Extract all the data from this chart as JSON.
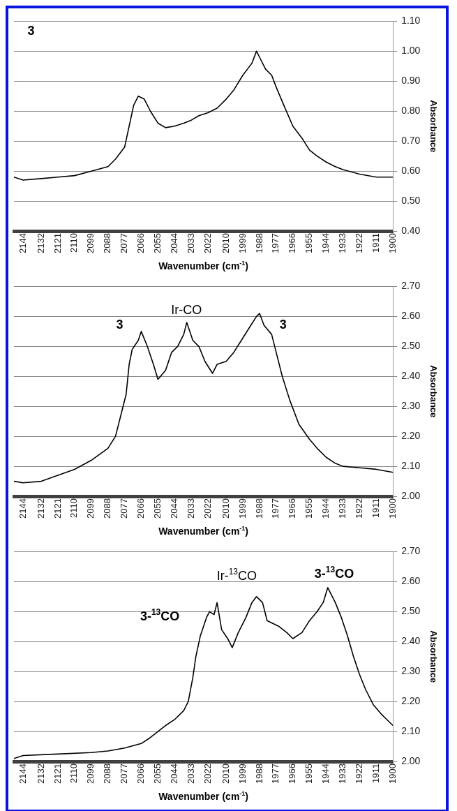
{
  "chart_data": [
    {
      "type": "line",
      "xlabel": "Wavenumber (cm$^{-1}$)",
      "ylabel": "Absorbance",
      "annotations": [
        "3"
      ],
      "grid": "y",
      "marker": "none",
      "line_style": "solid",
      "xlim": [
        2150,
        1900
      ],
      "xticks": [
        2144,
        2132,
        2121,
        2110,
        2099,
        2088,
        2077,
        2066,
        2055,
        2044,
        2033,
        2022,
        2010,
        1999,
        1988,
        1977,
        1966,
        1955,
        1944,
        1933,
        1922,
        1911,
        1900
      ],
      "ylim": [
        0.4,
        1.1
      ],
      "yticks": [
        {
          "value": 0.4,
          "label": "0.40"
        },
        {
          "value": 0.5,
          "label": "0.50"
        },
        {
          "value": 0.6,
          "label": "0.60"
        },
        {
          "value": 0.7,
          "label": "0.70"
        },
        {
          "value": 0.8,
          "label": "0.80"
        },
        {
          "value": 0.9,
          "label": "0.90"
        },
        {
          "value": 1.0,
          "label": "1.00"
        },
        {
          "value": 1.1,
          "label": "1.10"
        }
      ],
      "x": [
        2150,
        2144,
        2132,
        2121,
        2110,
        2099,
        2088,
        2083,
        2077,
        2074,
        2071,
        2068,
        2064,
        2060,
        2055,
        2050,
        2044,
        2038,
        2033,
        2028,
        2022,
        2016,
        2010,
        2005,
        1999,
        1996,
        1993,
        1990,
        1987,
        1984,
        1980,
        1977,
        1972,
        1966,
        1960,
        1955,
        1950,
        1944,
        1938,
        1933,
        1922,
        1911,
        1900
      ],
      "series": [
        {
          "color": "#000000",
          "values": [
            0.58,
            0.57,
            0.575,
            0.58,
            0.585,
            0.6,
            0.615,
            0.64,
            0.68,
            0.75,
            0.82,
            0.85,
            0.84,
            0.8,
            0.76,
            0.745,
            0.75,
            0.76,
            0.77,
            0.785,
            0.795,
            0.81,
            0.84,
            0.87,
            0.92,
            0.94,
            0.96,
            1.0,
            0.97,
            0.94,
            0.92,
            0.88,
            0.82,
            0.75,
            0.71,
            0.67,
            0.65,
            0.63,
            0.615,
            0.605,
            0.59,
            0.58,
            0.58
          ]
        }
      ]
    },
    {
      "type": "line",
      "xlabel": "Wavenumber (cm$^{-1}$)",
      "ylabel": "Absorbance",
      "grid": "y",
      "marker": "none",
      "line_style": "solid",
      "annotations": [
        "3",
        "Ir-CO",
        "3"
      ],
      "xlim": [
        2150,
        1900
      ],
      "xticks": [
        2144,
        2132,
        2121,
        2110,
        2099,
        2088,
        2077,
        2066,
        2055,
        2044,
        2033,
        2022,
        2010,
        1999,
        1988,
        1977,
        1966,
        1955,
        1944,
        1933,
        1922,
        1911,
        1900
      ],
      "ylim": [
        2.0,
        2.7
      ],
      "yticks": [
        {
          "value": 2.0,
          "label": "2.00"
        },
        {
          "value": 2.1,
          "label": "2.10"
        },
        {
          "value": 2.2,
          "label": "2.20"
        },
        {
          "value": 2.3,
          "label": "2.30"
        },
        {
          "value": 2.4,
          "label": "2.40"
        },
        {
          "value": 2.5,
          "label": "2.50"
        },
        {
          "value": 2.6,
          "label": "2.60"
        },
        {
          "value": 2.7,
          "label": "2.70"
        }
      ],
      "x": [
        2150,
        2144,
        2132,
        2121,
        2110,
        2099,
        2088,
        2083,
        2079,
        2076,
        2074,
        2072,
        2068,
        2066,
        2062,
        2058,
        2055,
        2050,
        2046,
        2042,
        2038,
        2036,
        2032,
        2028,
        2024,
        2019,
        2016,
        2010,
        2005,
        2000,
        1995,
        1990,
        1988,
        1985,
        1980,
        1977,
        1973,
        1968,
        1962,
        1955,
        1950,
        1944,
        1938,
        1933,
        1922,
        1911,
        1900
      ],
      "series": [
        {
          "color": "#000000",
          "values": [
            2.05,
            2.045,
            2.05,
            2.07,
            2.09,
            2.12,
            2.16,
            2.2,
            2.28,
            2.34,
            2.44,
            2.49,
            2.52,
            2.55,
            2.5,
            2.44,
            2.39,
            2.42,
            2.48,
            2.5,
            2.54,
            2.58,
            2.52,
            2.5,
            2.45,
            2.41,
            2.44,
            2.45,
            2.48,
            2.52,
            2.56,
            2.6,
            2.61,
            2.57,
            2.54,
            2.48,
            2.4,
            2.32,
            2.24,
            2.19,
            2.16,
            2.13,
            2.11,
            2.1,
            2.095,
            2.09,
            2.08
          ]
        }
      ]
    },
    {
      "type": "line",
      "xlabel": "Wavenumber (cm$^{-1}$)",
      "ylabel": "Absorbance",
      "grid": "y",
      "marker": "none",
      "line_style": "solid",
      "annotations": [
        "3-$^{13}$CO",
        "Ir-$^{13}$CO",
        "3-$^{13}$CO"
      ],
      "xlim": [
        2150,
        1900
      ],
      "xticks": [
        2144,
        2132,
        2121,
        2110,
        2099,
        2088,
        2077,
        2066,
        2055,
        2044,
        2033,
        2022,
        2010,
        1999,
        1988,
        1977,
        1966,
        1955,
        1944,
        1933,
        1922,
        1911,
        1900
      ],
      "ylim": [
        2.0,
        2.7
      ],
      "yticks": [
        {
          "value": 2.0,
          "label": "2.00"
        },
        {
          "value": 2.1,
          "label": "2.10"
        },
        {
          "value": 2.2,
          "label": "2.20"
        },
        {
          "value": 2.3,
          "label": "2.30"
        },
        {
          "value": 2.4,
          "label": "2.40"
        },
        {
          "value": 2.5,
          "label": "2.50"
        },
        {
          "value": 2.6,
          "label": "2.60"
        },
        {
          "value": 2.7,
          "label": "2.70"
        }
      ],
      "x": [
        2150,
        2144,
        2121,
        2099,
        2088,
        2077,
        2066,
        2060,
        2055,
        2050,
        2044,
        2038,
        2035,
        2032,
        2030,
        2027,
        2023,
        2021,
        2018,
        2016,
        2013,
        2009,
        2006,
        2002,
        1997,
        1993,
        1990,
        1986,
        1983,
        1979,
        1975,
        1970,
        1966,
        1960,
        1955,
        1950,
        1946,
        1943,
        1938,
        1934,
        1930,
        1926,
        1922,
        1918,
        1913,
        1908,
        1904,
        1900
      ],
      "series": [
        {
          "color": "#000000",
          "values": [
            2.01,
            2.02,
            2.025,
            2.03,
            2.035,
            2.045,
            2.06,
            2.08,
            2.1,
            2.12,
            2.14,
            2.17,
            2.2,
            2.28,
            2.35,
            2.42,
            2.48,
            2.5,
            2.49,
            2.53,
            2.44,
            2.41,
            2.38,
            2.43,
            2.48,
            2.53,
            2.55,
            2.53,
            2.47,
            2.46,
            2.45,
            2.43,
            2.41,
            2.43,
            2.47,
            2.5,
            2.53,
            2.58,
            2.53,
            2.48,
            2.42,
            2.35,
            2.29,
            2.24,
            2.19,
            2.16,
            2.14,
            2.12
          ]
        }
      ]
    }
  ]
}
